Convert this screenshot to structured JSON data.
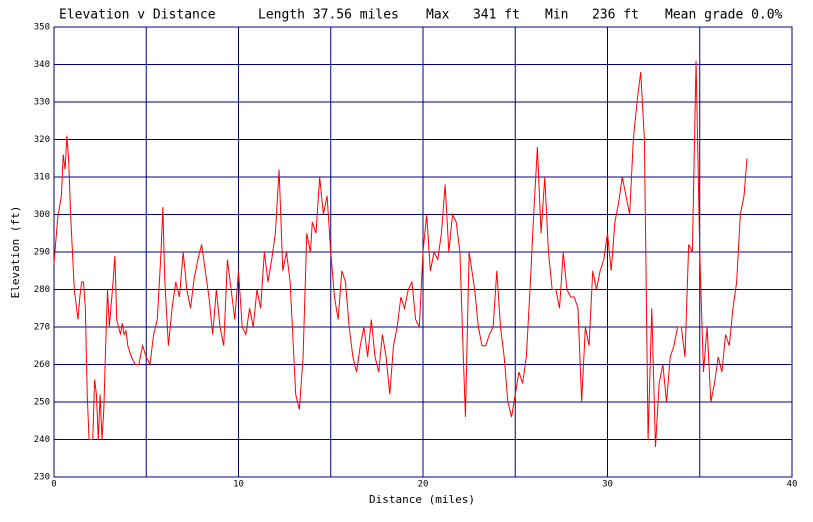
{
  "chart_data": {
    "type": "line",
    "title": "Elevation v Distance",
    "stats": [
      "Length 37.56 miles",
      "Max   341 ft",
      "Min   236 ft",
      "Mean grade 0.0%"
    ],
    "x_label": "Distance (miles)",
    "y_label": "Elevation (ft)",
    "xlim": [
      0,
      40
    ],
    "xticks": [
      0,
      10,
      20,
      30,
      40
    ],
    "x_minor_grid": [
      5,
      15,
      25,
      35
    ],
    "ylim": [
      230,
      350
    ],
    "yticks": [
      230,
      240,
      250,
      260,
      270,
      280,
      290,
      300,
      310,
      320,
      330,
      340,
      350
    ],
    "grid": true,
    "grid_color": "#000080",
    "series": [
      {
        "name": "Elevation",
        "color": "#ff0000",
        "x": [
          0,
          0.2,
          0.4,
          0.5,
          0.6,
          0.7,
          0.8,
          0.9,
          1.0,
          1.1,
          1.2,
          1.3,
          1.4,
          1.5,
          1.6,
          1.7,
          1.8,
          1.9,
          2.0,
          2.1,
          2.2,
          2.3,
          2.4,
          2.5,
          2.6,
          2.7,
          2.8,
          2.9,
          3.0,
          3.1,
          3.2,
          3.3,
          3.4,
          3.5,
          3.6,
          3.7,
          3.8,
          3.9,
          4.0,
          4.2,
          4.4,
          4.6,
          4.8,
          5.0,
          5.2,
          5.4,
          5.6,
          5.8,
          5.9,
          6.0,
          6.2,
          6.4,
          6.6,
          6.8,
          7.0,
          7.2,
          7.4,
          7.6,
          7.8,
          8.0,
          8.2,
          8.4,
          8.6,
          8.8,
          9.0,
          9.2,
          9.4,
          9.6,
          9.8,
          10.0,
          10.2,
          10.4,
          10.6,
          10.8,
          11.0,
          11.2,
          11.4,
          11.6,
          11.8,
          12.0,
          12.2,
          12.4,
          12.6,
          12.8,
          13.0,
          13.1,
          13.3,
          13.5,
          13.7,
          13.9,
          14.0,
          14.2,
          14.4,
          14.6,
          14.8,
          15.0,
          15.2,
          15.4,
          15.6,
          15.8,
          16.0,
          16.2,
          16.4,
          16.6,
          16.8,
          17.0,
          17.2,
          17.4,
          17.6,
          17.8,
          18.0,
          18.2,
          18.4,
          18.6,
          18.8,
          19.0,
          19.2,
          19.4,
          19.6,
          19.8,
          20.0,
          20.2,
          20.4,
          20.6,
          20.8,
          21.0,
          21.2,
          21.4,
          21.6,
          21.8,
          22.0,
          22.2,
          22.3,
          22.5,
          22.8,
          23.0,
          23.2,
          23.4,
          23.6,
          23.8,
          24.0,
          24.2,
          24.4,
          24.6,
          24.8,
          25.0,
          25.2,
          25.4,
          25.6,
          25.8,
          26.0,
          26.2,
          26.4,
          26.6,
          26.8,
          27.0,
          27.2,
          27.4,
          27.6,
          27.8,
          28.0,
          28.2,
          28.4,
          28.6,
          28.8,
          29.0,
          29.2,
          29.4,
          29.6,
          29.8,
          30.0,
          30.2,
          30.4,
          30.6,
          30.8,
          31.0,
          31.2,
          31.4,
          31.6,
          31.8,
          32.0,
          32.2,
          32.4,
          32.6,
          32.8,
          33.0,
          33.2,
          33.4,
          33.6,
          33.8,
          34.0,
          34.2,
          34.4,
          34.6,
          34.8,
          35.0,
          35.2,
          35.4,
          35.6,
          35.8,
          36.0,
          36.2,
          36.4,
          36.6,
          36.8,
          37.0,
          37.2,
          37.4,
          37.56
        ],
        "values": [
          287,
          299,
          305,
          316,
          312,
          321,
          314,
          300,
          290,
          280,
          276,
          272,
          278,
          282,
          282,
          275,
          252,
          240,
          240,
          240,
          256,
          252,
          240,
          252,
          240,
          248,
          265,
          280,
          270,
          276,
          282,
          289,
          272,
          270,
          268,
          271,
          268,
          269,
          265,
          262,
          260,
          260,
          265,
          262,
          260,
          268,
          272,
          290,
          302,
          283,
          265,
          275,
          282,
          278,
          290,
          280,
          275,
          283,
          288,
          292,
          285,
          278,
          268,
          280,
          270,
          265,
          288,
          280,
          272,
          285,
          270,
          268,
          275,
          270,
          280,
          275,
          290,
          282,
          288,
          295,
          312,
          285,
          290,
          282,
          262,
          252,
          248,
          262,
          295,
          290,
          298,
          295,
          310,
          300,
          305,
          290,
          278,
          272,
          285,
          282,
          270,
          262,
          258,
          265,
          270,
          262,
          272,
          262,
          258,
          268,
          262,
          252,
          265,
          270,
          278,
          275,
          280,
          282,
          272,
          270,
          290,
          300,
          285,
          290,
          288,
          295,
          308,
          290,
          300,
          298,
          290,
          260,
          246,
          290,
          280,
          270,
          265,
          265,
          268,
          270,
          285,
          270,
          262,
          250,
          246,
          252,
          258,
          255,
          262,
          280,
          300,
          318,
          295,
          310,
          290,
          280,
          280,
          275,
          290,
          280,
          278,
          278,
          275,
          250,
          270,
          265,
          285,
          280,
          285,
          288,
          295,
          285,
          298,
          303,
          310,
          305,
          300,
          320,
          330,
          338,
          320,
          240,
          275,
          238,
          255,
          260,
          250,
          262,
          265,
          270,
          270,
          262,
          292,
          290,
          341,
          290,
          258,
          270,
          250,
          255,
          262,
          258,
          268,
          265,
          275,
          282,
          300,
          305,
          315
        ]
      }
    ]
  }
}
